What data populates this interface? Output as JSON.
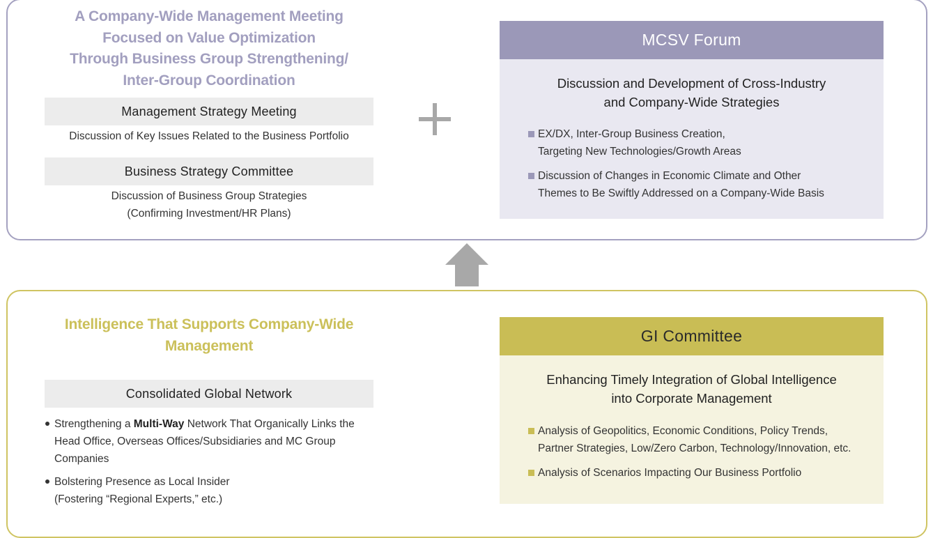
{
  "top": {
    "heading_lines": [
      "A Company-Wide Management Meeting",
      "Focused on Value Optimization",
      "Through Business Group Strengthening/",
      "Inter-Group Coordination"
    ],
    "management_meeting": {
      "label": "Management Strategy Meeting",
      "desc": "Discussion of Key Issues Related to the Business Portfolio"
    },
    "business_committee": {
      "label": "Business Strategy Committee",
      "desc_lines": [
        "Discussion of Business Group Strategies",
        "(Confirming Investment/HR Plans)"
      ]
    },
    "mcsv": {
      "header": "MCSV Forum",
      "title_lines": [
        "Discussion and Development of Cross-Industry",
        "and Company-Wide Strategies"
      ],
      "items": [
        [
          "EX/DX, Inter-Group Business Creation,",
          "Targeting New Technologies/Growth Areas"
        ],
        [
          "Discussion of Changes in Economic Climate and Other",
          "Themes to Be Swiftly Addressed on a Company-Wide Basis"
        ]
      ]
    }
  },
  "bottom": {
    "heading_lines": [
      "Intelligence That Supports Company-Wide",
      "Management"
    ],
    "network": {
      "label": "Consolidated Global Network",
      "bullet1": {
        "before": "Strengthening a ",
        "bold": "Multi-Way",
        "after": " Network That Organically Links the",
        "line2": "Head Office, Overseas Offices/Subsidiaries and MC Group",
        "line3": "Companies"
      },
      "bullet2_lines": [
        "Bolstering Presence as Local Insider",
        "(Fostering “Regional Experts,” etc.)"
      ]
    },
    "gi": {
      "header": "GI Committee",
      "title_lines": [
        "Enhancing Timely Integration of Global Intelligence",
        "into Corporate Management"
      ],
      "items": [
        [
          "Analysis of Geopolitics, Economic Conditions, Policy Trends,",
          "Partner Strategies, Low/Zero Carbon, Technology/Innovation, etc."
        ],
        [
          "Analysis of Scenarios Impacting Our Business Portfolio"
        ]
      ]
    }
  },
  "colors": {
    "purple_accent": "#9b98b8",
    "purple_text": "#a29fbf",
    "olive_accent": "#c9bd55",
    "olive_text": "#cbc05a",
    "gray_bar": "#ececec",
    "arrow": "#a8a8a8"
  },
  "icons": [
    "plus-icon",
    "up-arrow-icon",
    "square-bullet-icon",
    "round-bullet-icon"
  ]
}
